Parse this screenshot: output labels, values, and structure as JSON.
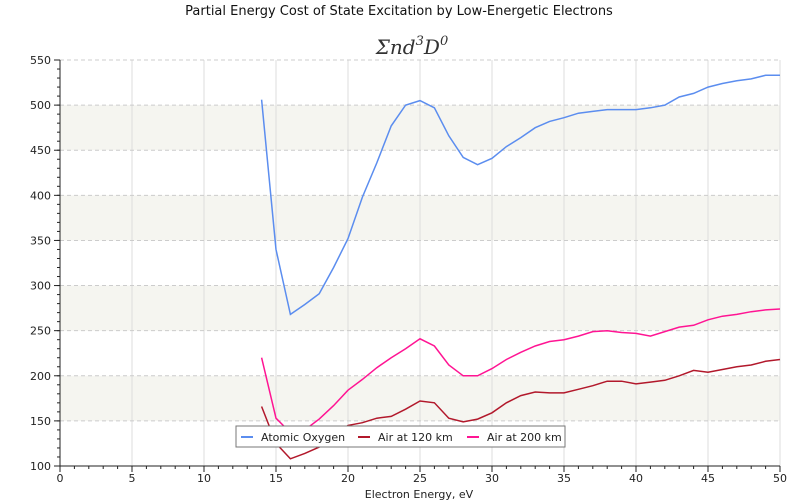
{
  "chart_data": {
    "type": "line",
    "title": "Partial Energy Cost of State Excitation by Low-Energetic Electrons",
    "subtitle": "Σnd³D⁰",
    "subtitle_parts": {
      "sigma": "Σnd",
      "sup1": "3",
      "d": "D",
      "sup2": "0"
    },
    "xlabel": "Electron Energy, eV",
    "ylabel": "",
    "xlim": [
      0,
      50
    ],
    "ylim": [
      100,
      550
    ],
    "xticks": [
      0,
      5,
      10,
      15,
      20,
      25,
      30,
      35,
      40,
      45,
      50
    ],
    "yticks": [
      100,
      150,
      200,
      250,
      300,
      350,
      400,
      450,
      500,
      550
    ],
    "grid": true,
    "legend_position": "bottom-center",
    "x": [
      14,
      15,
      16,
      17,
      18,
      19,
      20,
      21,
      22,
      23,
      24,
      25,
      26,
      27,
      28,
      29,
      30,
      31,
      32,
      33,
      34,
      35,
      36,
      37,
      38,
      39,
      40,
      41,
      42,
      43,
      44,
      45,
      46,
      47,
      48,
      49,
      50
    ],
    "series": [
      {
        "name": "Atomic Oxygen",
        "color": "#5b8def",
        "values": [
          506,
          340,
          268,
          279,
          291,
          320,
          352,
          398,
          436,
          477,
          500,
          505,
          497,
          466,
          442,
          434,
          441,
          454,
          464,
          475,
          482,
          486,
          491,
          493,
          495,
          495,
          495,
          497,
          500,
          509,
          513,
          520,
          524,
          527,
          529,
          533,
          533
        ]
      },
      {
        "name": "Air at 120 km",
        "color": "#b2182b",
        "values": [
          166,
          125,
          108,
          114,
          121,
          133,
          145,
          148,
          153,
          155,
          163,
          172,
          170,
          153,
          149,
          152,
          159,
          170,
          178,
          182,
          181,
          181,
          185,
          189,
          194,
          194,
          191,
          193,
          195,
          200,
          206,
          204,
          207,
          210,
          212,
          216,
          218
        ]
      },
      {
        "name": "Air at 200 km",
        "color": "#ff1493",
        "values": [
          220,
          153,
          137,
          140,
          152,
          167,
          184,
          196,
          209,
          220,
          230,
          241,
          233,
          212,
          200,
          200,
          208,
          218,
          226,
          233,
          238,
          240,
          244,
          249,
          250,
          248,
          247,
          244,
          249,
          254,
          256,
          262,
          266,
          268,
          271,
          273,
          274
        ]
      }
    ]
  }
}
